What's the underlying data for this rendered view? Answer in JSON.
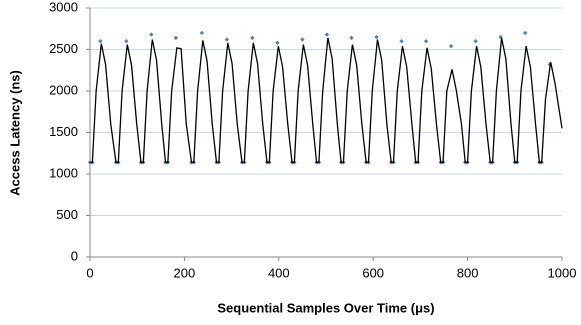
{
  "chart_data": {
    "type": "line",
    "xlabel": "Sequential Samples Over Time (μs)",
    "ylabel": "Access Latency (ns)",
    "xlim": [
      0,
      1000
    ],
    "xticks": [
      0,
      200,
      400,
      600,
      800,
      1000
    ],
    "ylim": [
      0,
      3000
    ],
    "yticks": [
      0,
      500,
      1000,
      1500,
      2000,
      2500,
      3000
    ],
    "grid": true,
    "series": [
      {
        "type": "scatter",
        "color": "#4f81bd",
        "x": [
          0,
          5,
          22,
          55,
          60,
          77,
          108,
          113,
          130,
          160,
          165,
          182,
          215,
          220,
          237,
          268,
          273,
          290,
          322,
          327,
          344,
          375,
          380,
          397,
          428,
          433,
          450,
          480,
          485,
          502,
          532,
          537,
          554,
          585,
          590,
          607,
          638,
          643,
          660,
          690,
          695,
          712,
          743,
          748,
          765,
          795,
          800,
          817,
          848,
          853,
          870,
          900,
          905,
          922,
          952,
          957,
          974
        ],
        "values": [
          1140,
          1140,
          2600,
          1140,
          1140,
          2600,
          1140,
          1140,
          2680,
          1140,
          1140,
          2640,
          1140,
          1140,
          2700,
          1140,
          1140,
          2620,
          1140,
          1140,
          2640,
          1140,
          1140,
          2580,
          1140,
          1140,
          2620,
          1140,
          1140,
          2680,
          1140,
          1140,
          2640,
          1140,
          1140,
          2650,
          1140,
          1140,
          2600,
          1140,
          1140,
          2600,
          1140,
          1140,
          2540,
          1140,
          1140,
          2600,
          1140,
          1140,
          2650,
          1140,
          1140,
          2700,
          1140,
          1140,
          2320
        ]
      },
      {
        "type": "line",
        "color": "#000000",
        "x": [
          0,
          5,
          13,
          24,
          33,
          44,
          55,
          60,
          68,
          79,
          88,
          99,
          108,
          113,
          121,
          132,
          141,
          152,
          160,
          165,
          173,
          184,
          193,
          204,
          215,
          220,
          228,
          239,
          248,
          259,
          268,
          273,
          281,
          292,
          301,
          312,
          322,
          327,
          335,
          346,
          355,
          366,
          375,
          380,
          388,
          399,
          408,
          419,
          428,
          433,
          441,
          452,
          461,
          472,
          480,
          485,
          493,
          504,
          513,
          524,
          532,
          537,
          545,
          556,
          565,
          576,
          585,
          590,
          598,
          609,
          618,
          629,
          638,
          643,
          651,
          662,
          671,
          682,
          690,
          695,
          703,
          714,
          723,
          734,
          743,
          748,
          756,
          767,
          776,
          787,
          795,
          800,
          808,
          819,
          828,
          839,
          848,
          853,
          861,
          872,
          881,
          892,
          900,
          905,
          913,
          924,
          933,
          944,
          952,
          957,
          965,
          976,
          985,
          1000
        ],
        "values": [
          1140,
          1140,
          2000,
          2570,
          2320,
          1600,
          1140,
          1140,
          2000,
          2560,
          2310,
          1600,
          1140,
          1140,
          2000,
          2620,
          2370,
          1600,
          1140,
          1140,
          2000,
          2520,
          2510,
          1600,
          1140,
          1140,
          2000,
          2610,
          2360,
          1600,
          1140,
          1140,
          2000,
          2580,
          2330,
          1600,
          1140,
          1140,
          2000,
          2580,
          2330,
          1600,
          1140,
          1140,
          2000,
          2540,
          2290,
          1600,
          1140,
          1140,
          2000,
          2560,
          2310,
          1600,
          1140,
          1140,
          2000,
          2640,
          2390,
          1600,
          1140,
          1140,
          2000,
          2560,
          2310,
          1600,
          1140,
          1140,
          2000,
          2620,
          2370,
          1600,
          1140,
          1140,
          2000,
          2540,
          2290,
          1600,
          1140,
          1140,
          2000,
          2520,
          2270,
          1600,
          1140,
          1140,
          2000,
          2260,
          2010,
          1600,
          1140,
          1140,
          2000,
          2540,
          2290,
          1600,
          1140,
          1140,
          2000,
          2640,
          2390,
          1600,
          1140,
          1140,
          2000,
          2540,
          2290,
          1600,
          1140,
          1140,
          1900,
          2350,
          2100,
          1550
        ]
      }
    ]
  }
}
